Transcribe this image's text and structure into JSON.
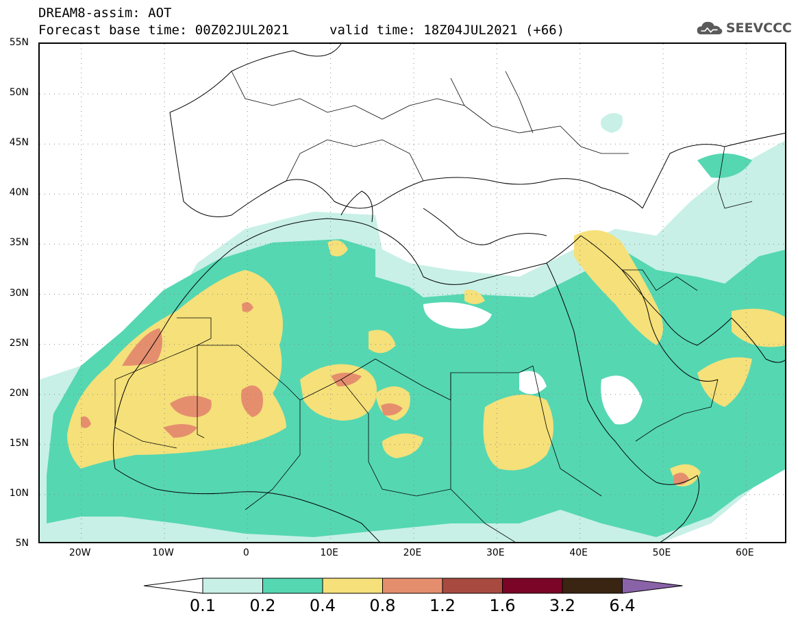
{
  "header": {
    "title": "DREAM8-assim: AOT",
    "base_time": "Forecast base time: 00Z02JUL2021",
    "valid_time": "valid time: 18Z04JUL2021 (+66)"
  },
  "logo": {
    "text": "SEEVCCC",
    "icon": "cloud-icon"
  },
  "map": {
    "lat_labels": [
      "55N",
      "50N",
      "45N",
      "40N",
      "35N",
      "30N",
      "25N",
      "20N",
      "15N",
      "10N",
      "5N"
    ],
    "lon_labels": [
      "20W",
      "10W",
      "0",
      "10E",
      "20E",
      "30E",
      "40E",
      "50E",
      "60E"
    ],
    "lat_range": [
      5,
      55
    ],
    "lon_range": [
      -25,
      65
    ],
    "grid": "dotted"
  },
  "colorbar": {
    "levels": [
      "0.1",
      "0.2",
      "0.4",
      "0.8",
      "1.2",
      "1.6",
      "3.2",
      "6.4"
    ],
    "colors": [
      "#c8f0e6",
      "#55d7b2",
      "#f5e07a",
      "#e58e6e",
      "#a84a40",
      "#7a0526",
      "#3a2412",
      "#8a62a8"
    ],
    "under_color": "#ffffff",
    "over_color": "#8a62a8"
  }
}
